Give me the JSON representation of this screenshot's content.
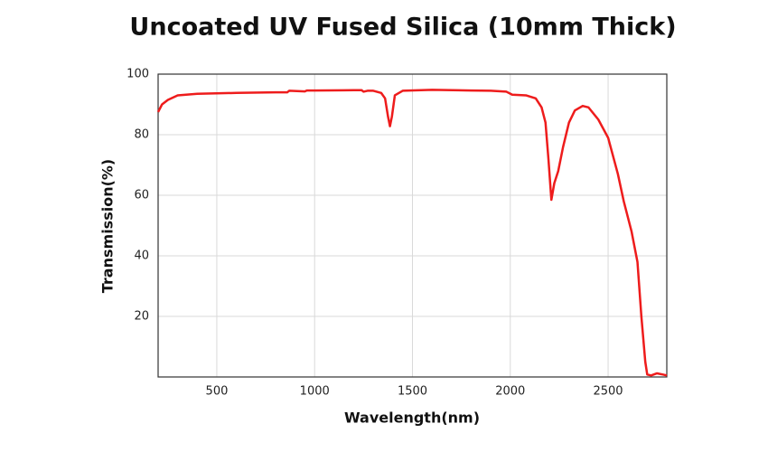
{
  "chart_data": {
    "type": "line",
    "title": "Uncoated UV Fused Silica (10mm Thick)",
    "xlabel": "Wavelength(nm)",
    "ylabel": "Transmission(%)",
    "xlim": [
      200,
      2800
    ],
    "xticks": [
      500,
      1000,
      1500,
      2000,
      2500
    ],
    "ylim": [
      0,
      100
    ],
    "yticks": [
      20,
      40,
      60,
      80,
      100
    ],
    "grid": true,
    "series": [
      {
        "color": "#ee1c1c",
        "x": [
          200,
          220,
          250,
          300,
          400,
          600,
          800,
          860,
          870,
          950,
          960,
          1000,
          1200,
          1240,
          1250,
          1270,
          1300,
          1340,
          1360,
          1375,
          1385,
          1395,
          1410,
          1450,
          1600,
          1800,
          1900,
          1980,
          2010,
          2080,
          2130,
          2160,
          2180,
          2195,
          2210,
          2225,
          2245,
          2270,
          2300,
          2330,
          2370,
          2400,
          2450,
          2500,
          2550,
          2580,
          2620,
          2650,
          2670,
          2690,
          2700,
          2720,
          2750,
          2780,
          2800
        ],
        "values": [
          87.5,
          90,
          91.5,
          93,
          93.5,
          93.8,
          94,
          94,
          94.5,
          94.3,
          94.6,
          94.6,
          94.7,
          94.7,
          94.2,
          94.5,
          94.5,
          93.8,
          92,
          86,
          82.8,
          86,
          93,
          94.5,
          94.8,
          94.6,
          94.5,
          94.2,
          93.2,
          93,
          92,
          89,
          84,
          72,
          58.5,
          64,
          68,
          76,
          84,
          88,
          89.5,
          89,
          85,
          79,
          67,
          58,
          48,
          38,
          20,
          5,
          0.8,
          0.5,
          1.2,
          0.8,
          0.5
        ]
      }
    ]
  }
}
